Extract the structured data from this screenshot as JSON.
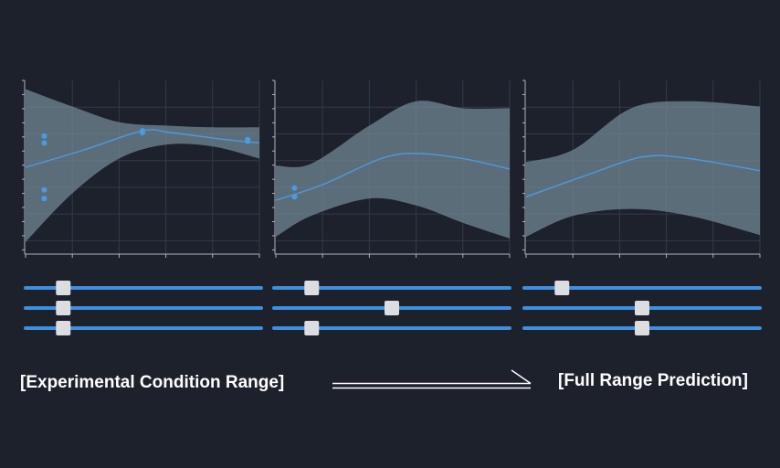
{
  "labels": {
    "left": "[Experimental Condition Range]",
    "right": "[Full Range Prediction]"
  },
  "colors": {
    "background": "#1c212c",
    "band": "#6e8391",
    "line": "#4a9be0",
    "point": "#4a9be0",
    "slider_track": "#3d8fe0",
    "slider_thumb": "#dcdde0",
    "grid": "#333a47",
    "axis": "#aeb4bd",
    "arrow": "#ffffff"
  },
  "icons": {
    "arrow": "arrow-right-icon"
  },
  "chart_data": [
    {
      "type": "line",
      "title": "",
      "x_range": [
        0,
        1
      ],
      "y_range": [
        0,
        1
      ],
      "grid": true,
      "mean": [
        [
          0.0,
          0.5
        ],
        [
          0.25,
          0.6
        ],
        [
          0.5,
          0.71
        ],
        [
          0.62,
          0.7
        ],
        [
          0.85,
          0.66
        ],
        [
          1.0,
          0.64
        ]
      ],
      "band_upper": [
        [
          0.0,
          0.95
        ],
        [
          0.2,
          0.85
        ],
        [
          0.4,
          0.76
        ],
        [
          0.6,
          0.74
        ],
        [
          0.8,
          0.73
        ],
        [
          1.0,
          0.73
        ]
      ],
      "band_lower": [
        [
          0.0,
          0.07
        ],
        [
          0.2,
          0.35
        ],
        [
          0.4,
          0.55
        ],
        [
          0.6,
          0.63
        ],
        [
          0.8,
          0.62
        ],
        [
          1.0,
          0.55
        ]
      ],
      "points": [
        [
          0.08,
          0.68
        ],
        [
          0.08,
          0.64
        ],
        [
          0.08,
          0.37
        ],
        [
          0.08,
          0.32
        ],
        [
          0.5,
          0.71
        ],
        [
          0.5,
          0.7
        ],
        [
          0.95,
          0.66
        ],
        [
          0.95,
          0.65
        ]
      ],
      "sliders": [
        0.16,
        0.16,
        0.16
      ]
    },
    {
      "type": "line",
      "title": "",
      "x_range": [
        0,
        1
      ],
      "y_range": [
        0,
        1
      ],
      "grid": true,
      "mean": [
        [
          0.0,
          0.31
        ],
        [
          0.2,
          0.4
        ],
        [
          0.45,
          0.55
        ],
        [
          0.6,
          0.58
        ],
        [
          0.8,
          0.55
        ],
        [
          1.0,
          0.49
        ]
      ],
      "band_upper": [
        [
          0.0,
          0.51
        ],
        [
          0.15,
          0.52
        ],
        [
          0.4,
          0.74
        ],
        [
          0.6,
          0.88
        ],
        [
          0.8,
          0.84
        ],
        [
          1.0,
          0.84
        ]
      ],
      "band_lower": [
        [
          0.0,
          0.1
        ],
        [
          0.15,
          0.22
        ],
        [
          0.4,
          0.32
        ],
        [
          0.6,
          0.28
        ],
        [
          0.8,
          0.18
        ],
        [
          1.0,
          0.09
        ]
      ],
      "points": [
        [
          0.08,
          0.38
        ],
        [
          0.08,
          0.33
        ]
      ],
      "sliders": [
        0.16,
        0.5,
        0.16
      ]
    },
    {
      "type": "line",
      "title": "",
      "x_range": [
        0,
        1
      ],
      "y_range": [
        0,
        1
      ],
      "grid": true,
      "mean": [
        [
          0.0,
          0.33
        ],
        [
          0.25,
          0.45
        ],
        [
          0.5,
          0.56
        ],
        [
          0.7,
          0.55
        ],
        [
          1.0,
          0.48
        ]
      ],
      "band_upper": [
        [
          0.0,
          0.53
        ],
        [
          0.2,
          0.6
        ],
        [
          0.45,
          0.84
        ],
        [
          0.7,
          0.88
        ],
        [
          1.0,
          0.85
        ]
      ],
      "band_lower": [
        [
          0.0,
          0.1
        ],
        [
          0.2,
          0.22
        ],
        [
          0.45,
          0.26
        ],
        [
          0.7,
          0.22
        ],
        [
          1.0,
          0.11
        ]
      ],
      "points": [],
      "sliders": [
        0.16,
        0.5,
        0.5
      ]
    }
  ]
}
